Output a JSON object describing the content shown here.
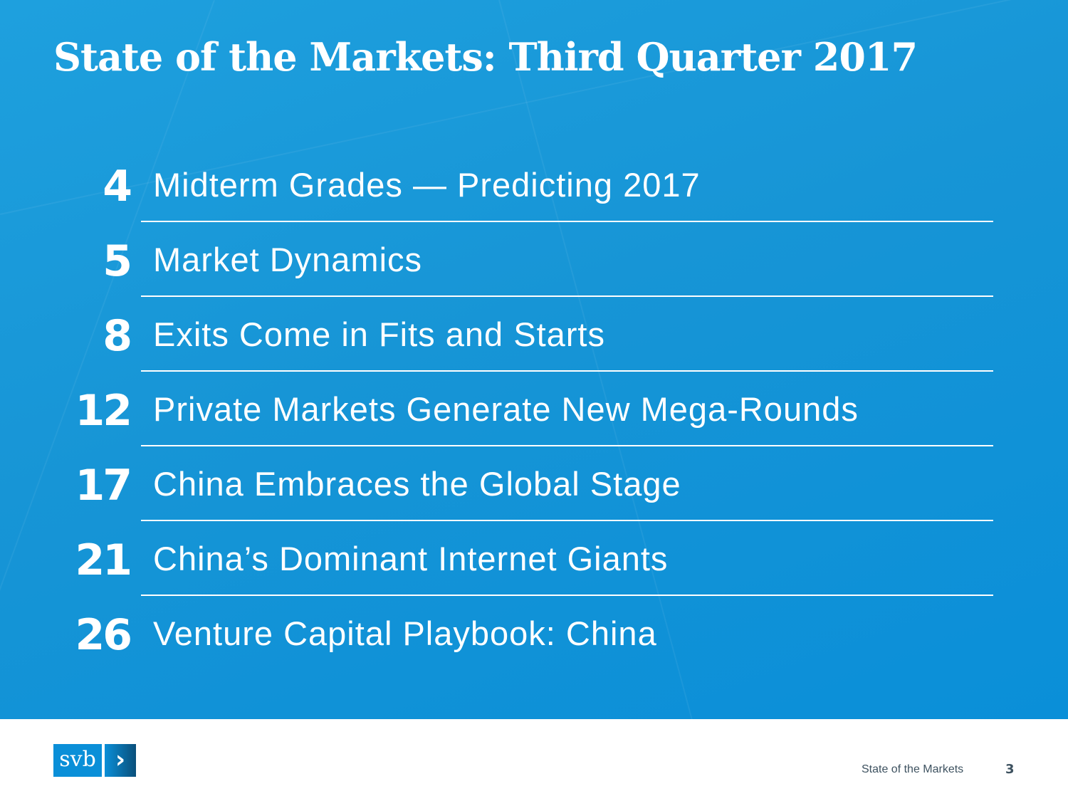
{
  "title": "State of the Markets: Third Quarter 2017",
  "toc": [
    {
      "page": "4",
      "label": "Midterm Grades — Predicting 2017"
    },
    {
      "page": "5",
      "label": "Market Dynamics"
    },
    {
      "page": "8",
      "label": "Exits Come in Fits and Starts"
    },
    {
      "page": "12",
      "label": "Private Markets Generate New Mega-Rounds"
    },
    {
      "page": "17",
      "label": "China Embraces the Global Stage"
    },
    {
      "page": "21",
      "label": "China’s Dominant Internet Giants"
    },
    {
      "page": "26",
      "label": "Venture Capital Playbook: China"
    }
  ],
  "footer": {
    "logo_text": "svb",
    "logo_glyph": "›",
    "text": "State of the Markets",
    "page_number": "3"
  },
  "colors": {
    "background": "#1795d6",
    "footer_text": "#3e5260"
  }
}
